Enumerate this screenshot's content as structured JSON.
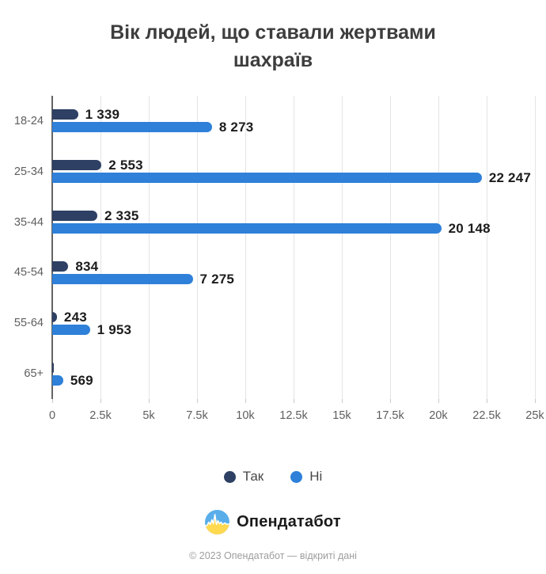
{
  "title": "Вік людей, що ставали жертвами шахраїв",
  "chart_data": {
    "type": "bar",
    "orientation": "horizontal",
    "categories": [
      "18-24",
      "25-34",
      "35-44",
      "45-54",
      "55-64",
      "65+"
    ],
    "series": [
      {
        "name": "Так",
        "color": "#2e4063",
        "values": [
          1339,
          2553,
          2335,
          834,
          243,
          80
        ],
        "labels": [
          "1 339",
          "2 553",
          "2 335",
          "834",
          "243",
          ""
        ]
      },
      {
        "name": "Ні",
        "color": "#2e80d9",
        "values": [
          8273,
          22247,
          20148,
          7275,
          1953,
          569
        ],
        "labels": [
          "8 273",
          "22 247",
          "20 148",
          "7 275",
          "1 953",
          "569"
        ]
      }
    ],
    "x_axis": {
      "min": 0,
      "max": 25000,
      "ticks": [
        "0",
        "2.5k",
        "5k",
        "7.5k",
        "10k",
        "12.5k",
        "15k",
        "17.5k",
        "20k",
        "22.5k",
        "25k"
      ]
    },
    "grid": "vertical-gridlines-on",
    "legend_position": "bottom"
  },
  "footer": {
    "brand": "Опендатабот",
    "logo": "opendatabot-pulse-circle-icon",
    "copyright": "© 2023 Опендатабот — відкриті дані"
  },
  "colors": {
    "background": "#ffffff",
    "title_text": "#3d3d3d",
    "axis_line": "#636363",
    "gridline": "#e4e4e4",
    "tick_text": "#5e5e5e",
    "value_text": "#1c1c1c",
    "series_yes": "#2e4063",
    "series_no": "#2e80d9",
    "logo_blue": "#59aeea",
    "logo_yellow": "#ffd94f"
  }
}
